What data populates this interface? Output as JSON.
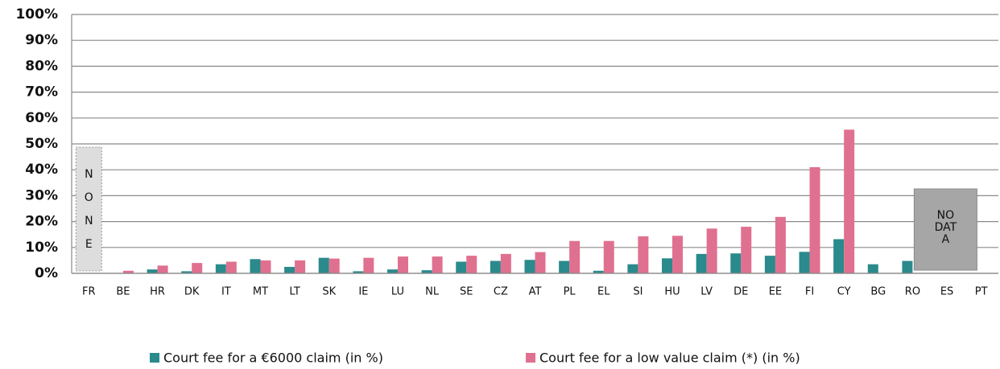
{
  "chart_data": {
    "type": "bar",
    "categories": [
      "FR",
      "BE",
      "HR",
      "DK",
      "IT",
      "MT",
      "LT",
      "SK",
      "IE",
      "LU",
      "NL",
      "SE",
      "CZ",
      "AT",
      "PL",
      "EL",
      "SI",
      "HU",
      "LV",
      "DE",
      "EE",
      "FI",
      "CY",
      "BG",
      "RO",
      "ES",
      "PT"
    ],
    "series": [
      {
        "name": "Court fee for a €6000 claim (in %)",
        "color": "#2a8a8c",
        "values": [
          null,
          0,
          1.5,
          0.8,
          3.5,
          5.5,
          2.5,
          6,
          0.8,
          1.5,
          1.2,
          4.5,
          4.8,
          5.2,
          4.8,
          1,
          3.5,
          5.8,
          7.5,
          7.7,
          6.8,
          8.3,
          13.2,
          3.5,
          4.8,
          null,
          null
        ]
      },
      {
        "name": "Court fee for a low value claim (*) (in %)",
        "color": "#e0708f",
        "values": [
          null,
          1,
          3,
          4,
          4.5,
          5,
          5,
          5.7,
          6,
          6.5,
          6.5,
          6.8,
          7.5,
          8.2,
          12.5,
          12.5,
          14.3,
          14.5,
          17.3,
          18,
          21.8,
          41,
          55.5,
          null,
          null,
          null,
          null
        ]
      }
    ],
    "ylim": [
      0,
      100
    ],
    "yticks": [
      {
        "value": 0,
        "label": "0%"
      },
      {
        "value": 10,
        "label": "10%"
      },
      {
        "value": 20,
        "label": "20%"
      },
      {
        "value": 30,
        "label": "30%"
      },
      {
        "value": 40,
        "label": "40%"
      },
      {
        "value": 50,
        "label": "50%"
      },
      {
        "value": 60,
        "label": "60%"
      },
      {
        "value": 70,
        "label": "70%"
      },
      {
        "value": 80,
        "label": "80%"
      },
      {
        "value": 90,
        "label": "90%"
      },
      {
        "value": 100,
        "label": "100%"
      }
    ],
    "grid": true,
    "annotations": [
      {
        "lines": [
          "N",
          "O",
          "N",
          "E"
        ]
      },
      {
        "lines": [
          "NO",
          "DAT",
          "A"
        ]
      }
    ]
  }
}
